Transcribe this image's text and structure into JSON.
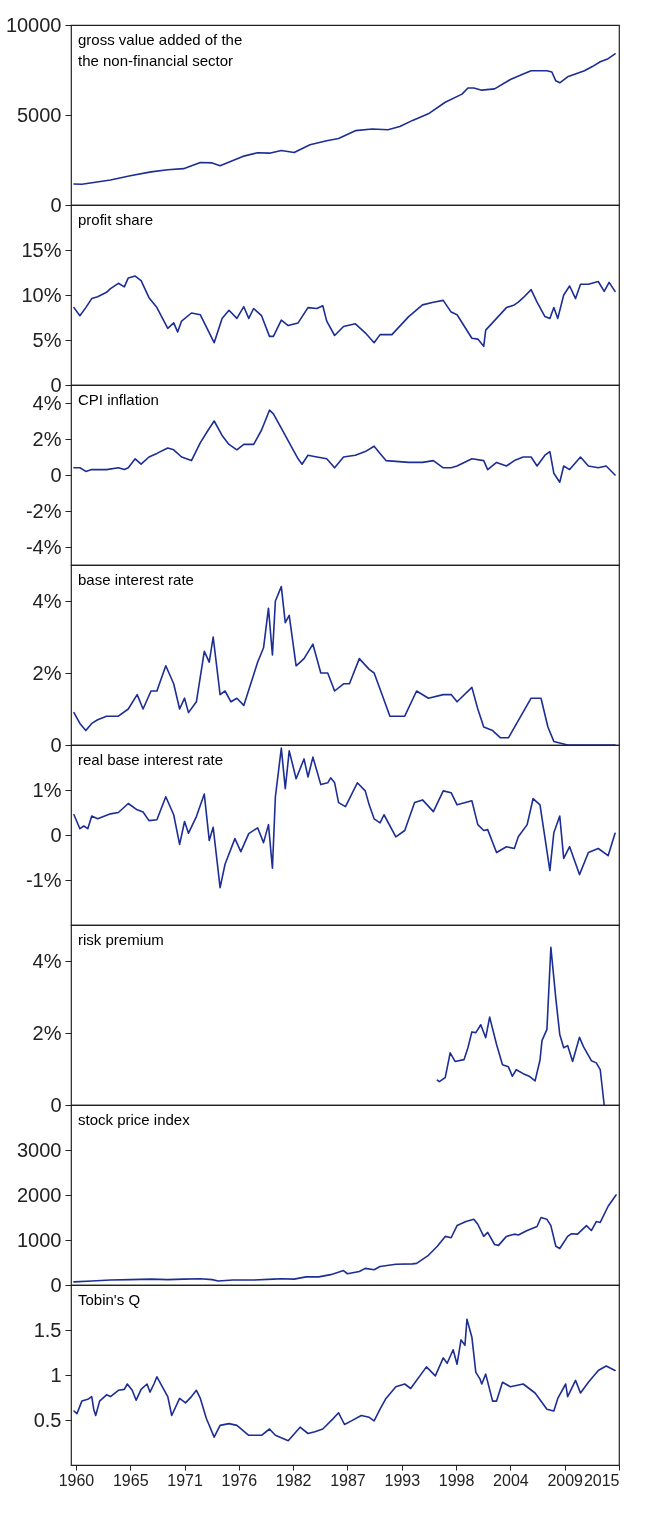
{
  "chart_data": [
    {
      "type": "line",
      "title": "gross value added of the\nthe non-financial sector",
      "color": "#1c2e94",
      "xlim": [
        1959.5,
        2015
      ],
      "ylim": [
        0,
        10000
      ],
      "yticks": [
        0,
        5000,
        10000
      ],
      "tick_labels": "y",
      "grid": false,
      "x": [
        1959.8,
        1960.6,
        1963.5,
        1965.5,
        1967.6,
        1969.3,
        1970.9,
        1972.6,
        1973.8,
        1974.6,
        1975.9,
        1976.9,
        1978.4,
        1979.6,
        1980.8,
        1982.1,
        1983.7,
        1985.4,
        1986.6,
        1988.3,
        1990.0,
        1991.6,
        1992.8,
        1994.1,
        1995.8,
        1997.4,
        1999.1,
        1999.7,
        2000.3,
        2001.1,
        2002.4,
        2004.0,
        2005.3,
        2006.1,
        2007.7,
        2008.2,
        2008.6,
        2009.0,
        2009.8,
        2011.5,
        2012.3,
        2013.1,
        2013.9,
        2014.6
      ],
      "values": [
        1170,
        1150,
        1390,
        1620,
        1840,
        1960,
        2020,
        2360,
        2340,
        2180,
        2470,
        2700,
        2900,
        2880,
        3030,
        2920,
        3350,
        3570,
        3690,
        4130,
        4220,
        4180,
        4360,
        4700,
        5100,
        5710,
        6160,
        6500,
        6500,
        6380,
        6450,
        6970,
        7280,
        7460,
        7460,
        7390,
        6900,
        6790,
        7120,
        7460,
        7690,
        7960,
        8130,
        8400
      ]
    },
    {
      "type": "line",
      "title": "profit share",
      "color": "#1c2e94",
      "xlim": [
        1959.5,
        2015
      ],
      "ylim": [
        0,
        20
      ],
      "yticks": [
        0,
        {
          "value": 5,
          "label": "5%"
        },
        {
          "value": 10,
          "label": "10%"
        },
        {
          "value": 15,
          "label": "15%"
        }
      ],
      "tick_labels": "y",
      "grid": false,
      "x": [
        1959.8,
        1960.4,
        1961.0,
        1961.6,
        1962.2,
        1963.1,
        1963.5,
        1964.3,
        1964.9,
        1965.3,
        1966.0,
        1966.6,
        1967.4,
        1968.2,
        1969.3,
        1969.9,
        1970.3,
        1970.7,
        1971.7,
        1972.6,
        1974.0,
        1974.8,
        1975.5,
        1976.3,
        1977.0,
        1977.5,
        1978.0,
        1978.8,
        1979.6,
        1980.0,
        1980.8,
        1981.5,
        1982.5,
        1983.5,
        1984.4,
        1985.0,
        1985.4,
        1986.2,
        1987.1,
        1988.3,
        1989.3,
        1990.2,
        1990.8,
        1992.0,
        1993.7,
        1995.1,
        1996.2,
        1997.2,
        1998.0,
        1998.6,
        2000.1,
        2000.7,
        2001.3,
        2001.5,
        2002.6,
        2003.6,
        2004.4,
        2004.8,
        2005.3,
        2006.1,
        2006.7,
        2007.5,
        2008.0,
        2008.4,
        2008.8,
        2009.4,
        2010.0,
        2010.6,
        2011.1,
        2011.9,
        2012.9,
        2013.5,
        2014.0,
        2014.6
      ],
      "values": [
        8.6,
        7.7,
        8.6,
        9.6,
        9.8,
        10.3,
        10.7,
        11.3,
        10.9,
        11.9,
        12.1,
        11.6,
        9.7,
        8.6,
        6.3,
        6.9,
        5.9,
        7.1,
        8.0,
        7.8,
        4.7,
        7.4,
        8.3,
        7.4,
        8.7,
        7.4,
        8.5,
        7.7,
        5.4,
        5.4,
        7.2,
        6.6,
        6.9,
        8.6,
        8.5,
        8.8,
        7.1,
        5.5,
        6.5,
        6.8,
        5.8,
        4.7,
        5.6,
        5.6,
        7.6,
        8.9,
        9.2,
        9.4,
        8.1,
        7.8,
        5.2,
        5.1,
        4.3,
        6.1,
        7.4,
        8.6,
        8.9,
        9.2,
        9.7,
        10.6,
        9.2,
        7.6,
        7.4,
        8.6,
        7.4,
        10.0,
        11.0,
        9.6,
        11.2,
        11.2,
        11.5,
        10.4,
        11.4,
        10.4
      ]
    },
    {
      "type": "line",
      "title": "CPI inflation",
      "color": "#1c2e94",
      "xlim": [
        1959.5,
        2015
      ],
      "ylim": [
        -5,
        5
      ],
      "yticks": [
        {
          "value": -4,
          "label": "-4%"
        },
        {
          "value": -2,
          "label": "-2%"
        },
        0,
        {
          "value": 2,
          "label": "2%"
        },
        {
          "value": 4,
          "label": "4%"
        }
      ],
      "tick_labels": "y",
      "grid": false,
      "x": [
        1959.8,
        1960.4,
        1961.0,
        1961.6,
        1963.1,
        1964.3,
        1964.9,
        1965.3,
        1966.0,
        1966.6,
        1967.4,
        1968.2,
        1969.3,
        1969.9,
        1970.7,
        1971.7,
        1972.6,
        1973.4,
        1974.0,
        1974.8,
        1975.5,
        1976.3,
        1977.0,
        1978.0,
        1978.8,
        1979.6,
        1980.0,
        1980.8,
        1981.5,
        1982.5,
        1982.9,
        1983.5,
        1984.4,
        1985.4,
        1986.2,
        1987.1,
        1988.3,
        1989.3,
        1990.2,
        1990.8,
        1991.4,
        1993.7,
        1995.1,
        1996.2,
        1997.2,
        1998.0,
        1998.6,
        2000.1,
        2001.3,
        2001.7,
        2002.6,
        2003.6,
        2004.4,
        2005.3,
        2006.1,
        2006.7,
        2007.5,
        2008.0,
        2008.4,
        2009.0,
        2009.4,
        2010.0,
        2011.1,
        2011.9,
        2012.9,
        2013.7,
        2014.6
      ],
      "values": [
        0.4,
        0.4,
        0.2,
        0.3,
        0.3,
        0.4,
        0.3,
        0.4,
        0.9,
        0.6,
        1.0,
        1.2,
        1.5,
        1.4,
        1.0,
        0.8,
        1.8,
        2.5,
        3.0,
        2.2,
        1.7,
        1.4,
        1.7,
        1.7,
        2.5,
        3.6,
        3.4,
        2.6,
        1.9,
        0.9,
        0.6,
        1.1,
        1.0,
        0.9,
        0.4,
        1.0,
        1.1,
        1.3,
        1.6,
        1.2,
        0.8,
        0.7,
        0.7,
        0.8,
        0.4,
        0.4,
        0.5,
        0.9,
        0.8,
        0.3,
        0.7,
        0.5,
        0.8,
        1.0,
        1.0,
        0.5,
        1.1,
        1.3,
        0.1,
        -0.4,
        0.5,
        0.3,
        1.0,
        0.5,
        0.4,
        0.5,
        0.0
      ]
    },
    {
      "type": "line",
      "title": "base interest rate",
      "color": "#1c2e94",
      "xlim": [
        1959.5,
        2015
      ],
      "ylim": [
        0,
        5
      ],
      "yticks": [
        0,
        {
          "value": 2,
          "label": "2%"
        },
        {
          "value": 4,
          "label": "4%"
        }
      ],
      "tick_labels": "y",
      "grid": false,
      "x": [
        1959.8,
        1960.4,
        1961.0,
        1961.6,
        1962.2,
        1963.1,
        1964.3,
        1965.3,
        1966.2,
        1966.8,
        1967.6,
        1968.2,
        1969.1,
        1969.9,
        1970.5,
        1971.0,
        1971.4,
        1972.2,
        1973.0,
        1973.5,
        1973.9,
        1974.6,
        1975.1,
        1975.7,
        1976.3,
        1977.0,
        1978.4,
        1979.0,
        1979.5,
        1979.9,
        1980.2,
        1980.8,
        1981.2,
        1981.6,
        1982.3,
        1983.1,
        1984.0,
        1984.8,
        1985.5,
        1986.2,
        1987.1,
        1987.7,
        1988.7,
        1989.7,
        1990.2,
        1991.0,
        1991.8,
        1992.4,
        1993.3,
        1994.5,
        1995.7,
        1997.2,
        1998.0,
        1998.6,
        2000.1,
        2000.7,
        2001.3,
        2002.2,
        2003.0,
        2003.8,
        2006.1,
        2007.1,
        2007.8,
        2008.4,
        2009.8,
        2014.6
      ],
      "values": [
        0.9,
        0.6,
        0.4,
        0.6,
        0.7,
        0.8,
        0.8,
        1.0,
        1.4,
        1.0,
        1.5,
        1.5,
        2.2,
        1.7,
        1.0,
        1.3,
        0.9,
        1.2,
        2.6,
        2.3,
        3.0,
        1.4,
        1.5,
        1.2,
        1.3,
        1.1,
        2.3,
        2.7,
        3.8,
        2.5,
        4.0,
        4.4,
        3.4,
        3.6,
        2.2,
        2.4,
        2.8,
        2.0,
        2.0,
        1.5,
        1.7,
        1.7,
        2.4,
        2.1,
        2.0,
        1.4,
        0.8,
        0.8,
        0.8,
        1.5,
        1.3,
        1.4,
        1.4,
        1.2,
        1.6,
        1.0,
        0.5,
        0.4,
        0.2,
        0.2,
        1.3,
        1.3,
        0.5,
        0.1,
        0.0,
        0.0
      ]
    },
    {
      "type": "line",
      "title": "real base interest rate",
      "color": "#1c2e94",
      "xlim": [
        1959.5,
        2015
      ],
      "ylim": [
        -2,
        2
      ],
      "yticks": [
        {
          "value": -1,
          "label": "-1%"
        },
        0,
        {
          "value": 1,
          "label": "1%"
        }
      ],
      "tick_labels": "y",
      "grid": false,
      "x": [
        1959.8,
        1960.4,
        1960.8,
        1961.2,
        1961.6,
        1962.2,
        1963.5,
        1964.3,
        1965.3,
        1966.2,
        1966.8,
        1967.4,
        1968.2,
        1969.1,
        1969.9,
        1970.5,
        1971.0,
        1971.4,
        1972.2,
        1973.0,
        1973.5,
        1973.9,
        1974.6,
        1975.1,
        1976.1,
        1976.7,
        1977.5,
        1978.4,
        1979.0,
        1979.5,
        1979.9,
        1980.2,
        1980.8,
        1981.2,
        1981.6,
        1982.3,
        1983.1,
        1983.5,
        1984.0,
        1984.8,
        1985.5,
        1985.8,
        1986.2,
        1986.6,
        1987.3,
        1988.5,
        1989.3,
        1989.7,
        1990.2,
        1990.8,
        1991.2,
        1992.4,
        1993.3,
        1994.3,
        1995.1,
        1996.2,
        1997.2,
        1998.0,
        1998.6,
        2000.1,
        2000.7,
        2001.3,
        2001.7,
        2002.6,
        2003.6,
        2004.4,
        2004.8,
        2005.7,
        2006.3,
        2007.0,
        2008.0,
        2008.4,
        2009.0,
        2009.4,
        2010.0,
        2011.0,
        2011.9,
        2012.9,
        2013.9,
        2014.6
      ],
      "values": [
        0.45,
        0.14,
        0.2,
        0.14,
        0.42,
        0.36,
        0.47,
        0.5,
        0.7,
        0.56,
        0.51,
        0.32,
        0.34,
        0.85,
        0.45,
        -0.21,
        0.3,
        0.04,
        0.41,
        0.91,
        -0.12,
        0.17,
        -1.17,
        -0.65,
        -0.08,
        -0.37,
        0.03,
        0.16,
        -0.17,
        0.23,
        -0.74,
        0.85,
        1.93,
        1.03,
        1.87,
        1.25,
        1.69,
        1.29,
        1.73,
        1.12,
        1.16,
        1.27,
        1.16,
        0.72,
        0.63,
        1.16,
        0.98,
        0.67,
        0.36,
        0.27,
        0.45,
        -0.04,
        0.1,
        0.72,
        0.78,
        0.52,
        0.98,
        0.94,
        0.67,
        0.76,
        0.23,
        0.1,
        0.12,
        -0.39,
        -0.26,
        -0.3,
        -0.04,
        0.23,
        0.81,
        0.67,
        -0.79,
        0.05,
        0.42,
        -0.52,
        -0.26,
        -0.88,
        -0.39,
        -0.3,
        -0.46,
        0.04
      ]
    },
    {
      "type": "line",
      "title": "risk premium",
      "color": "#1c2e94",
      "xlim": [
        1959.5,
        2015
      ],
      "ylim": [
        0,
        5
      ],
      "yticks": [
        0,
        {
          "value": 2,
          "label": "2%"
        },
        {
          "value": 4,
          "label": "4%"
        }
      ],
      "tick_labels": "y",
      "grid": false,
      "x": [
        1996.6,
        1996.8,
        1997.4,
        1997.9,
        1998.4,
        1999.3,
        1999.7,
        2000.1,
        2000.5,
        2001.0,
        2001.5,
        2001.9,
        2002.6,
        2003.2,
        2003.8,
        2004.2,
        2004.6,
        2005.3,
        2005.9,
        2006.5,
        2007.0,
        2007.2,
        2007.7,
        2008.1,
        2008.6,
        2009.0,
        2009.4,
        2009.8,
        2010.3,
        2011.0,
        2011.4,
        2012.2,
        2012.7,
        2013.1,
        2013.5
      ],
      "values": [
        0.69,
        0.65,
        0.76,
        1.45,
        1.21,
        1.26,
        1.59,
        2.03,
        2.01,
        2.23,
        1.87,
        2.44,
        1.68,
        1.12,
        1.06,
        0.8,
        0.98,
        0.87,
        0.8,
        0.67,
        1.25,
        1.79,
        2.1,
        4.38,
        2.96,
        1.96,
        1.59,
        1.65,
        1.21,
        1.88,
        1.62,
        1.23,
        1.17,
        0.98,
        0.0
      ]
    },
    {
      "type": "line",
      "title": "stock price index",
      "color": "#1c2e94",
      "xlim": [
        1959.5,
        2015
      ],
      "ylim": [
        0,
        4000
      ],
      "yticks": [
        0,
        1000,
        2000,
        3000
      ],
      "tick_labels": "y",
      "grid": false,
      "x": [
        1959.8,
        1961.6,
        1963.5,
        1965.5,
        1967.6,
        1969.3,
        1970.9,
        1972.6,
        1973.8,
        1974.4,
        1975.9,
        1978.0,
        1980.0,
        1980.8,
        1982.1,
        1983.3,
        1984.6,
        1985.8,
        1987.1,
        1987.5,
        1988.7,
        1989.3,
        1990.2,
        1990.8,
        1992.4,
        1994.1,
        1994.5,
        1995.7,
        1996.6,
        1997.4,
        1998.0,
        1998.6,
        1999.5,
        2000.3,
        2000.7,
        2001.3,
        2001.7,
        2002.4,
        2002.8,
        2003.6,
        2004.4,
        2004.8,
        2005.7,
        2006.7,
        2007.1,
        2007.7,
        2008.1,
        2008.6,
        2009.0,
        2009.8,
        2010.2,
        2010.8,
        2011.7,
        2012.2,
        2012.7,
        2013.1,
        2013.9,
        2014.7
      ],
      "values": [
        70,
        90,
        110,
        120,
        130,
        120,
        130,
        140,
        120,
        90,
        110,
        110,
        130,
        140,
        130,
        180,
        180,
        230,
        320,
        250,
        300,
        370,
        340,
        410,
        460,
        470,
        480,
        660,
        860,
        1080,
        1050,
        1320,
        1410,
        1460,
        1350,
        1080,
        1170,
        900,
        880,
        1080,
        1130,
        1110,
        1210,
        1300,
        1500,
        1460,
        1320,
        860,
        810,
        1080,
        1140,
        1130,
        1320,
        1210,
        1410,
        1390,
        1750,
        2000
      ]
    },
    {
      "type": "line",
      "title": "Tobin's Q",
      "color": "#1c2e94",
      "xlim": [
        1959.5,
        2015
      ],
      "ylim": [
        0,
        2
      ],
      "yticks": [
        0.5,
        1,
        1.5
      ],
      "xticks": [
        1960,
        {
          "value": 1965.5,
          "label": "1965"
        },
        1971,
        {
          "value": 1976.5,
          "label": "1976"
        },
        1982,
        {
          "value": 1987.5,
          "label": "1987"
        },
        1993,
        {
          "value": 1998.5,
          "label": "1998"
        },
        2004,
        {
          "value": 2009.5,
          "label": "2009"
        },
        2015
      ],
      "grid": false,
      "x": [
        1959.8,
        1960.1,
        1960.6,
        1961.2,
        1961.6,
        1961.8,
        1962.0,
        1962.4,
        1963.1,
        1963.5,
        1964.3,
        1964.9,
        1965.2,
        1965.7,
        1966.1,
        1966.6,
        1967.2,
        1967.5,
        1967.9,
        1968.2,
        1969.3,
        1969.7,
        1970.5,
        1971.1,
        1971.7,
        1972.2,
        1972.6,
        1973.2,
        1974.0,
        1974.6,
        1975.5,
        1976.3,
        1977.5,
        1978.8,
        1979.6,
        1980.2,
        1981.5,
        1982.7,
        1983.5,
        1984.2,
        1985.0,
        1986.0,
        1986.6,
        1987.2,
        1987.9,
        1988.9,
        1989.7,
        1990.2,
        1990.8,
        1991.4,
        1992.4,
        1993.3,
        1993.9,
        1995.5,
        1996.4,
        1997.2,
        1997.6,
        1998.2,
        1998.6,
        1999.0,
        1999.4,
        1999.6,
        2000.1,
        2000.5,
        2000.9,
        2001.1,
        2001.5,
        2002.2,
        2002.6,
        2003.2,
        2004.0,
        2005.3,
        2006.5,
        2007.7,
        2008.4,
        2008.8,
        2009.6,
        2009.8,
        2010.6,
        2011.1,
        2011.9,
        2012.9,
        2013.7,
        2014.6
      ],
      "values": [
        0.6,
        0.57,
        0.71,
        0.73,
        0.76,
        0.62,
        0.55,
        0.71,
        0.78,
        0.76,
        0.83,
        0.84,
        0.9,
        0.83,
        0.72,
        0.84,
        0.9,
        0.81,
        0.9,
        0.98,
        0.76,
        0.55,
        0.74,
        0.69,
        0.76,
        0.83,
        0.74,
        0.52,
        0.31,
        0.44,
        0.46,
        0.44,
        0.33,
        0.33,
        0.4,
        0.33,
        0.27,
        0.42,
        0.35,
        0.37,
        0.4,
        0.51,
        0.58,
        0.45,
        0.49,
        0.55,
        0.53,
        0.49,
        0.62,
        0.74,
        0.87,
        0.9,
        0.85,
        1.09,
        0.99,
        1.19,
        1.13,
        1.28,
        1.12,
        1.39,
        1.33,
        1.62,
        1.42,
        1.03,
        0.96,
        0.9,
        1.01,
        0.71,
        0.71,
        0.92,
        0.87,
        0.9,
        0.8,
        0.62,
        0.6,
        0.74,
        0.9,
        0.76,
        0.94,
        0.8,
        0.92,
        1.05,
        1.1,
        1.05
      ]
    }
  ]
}
